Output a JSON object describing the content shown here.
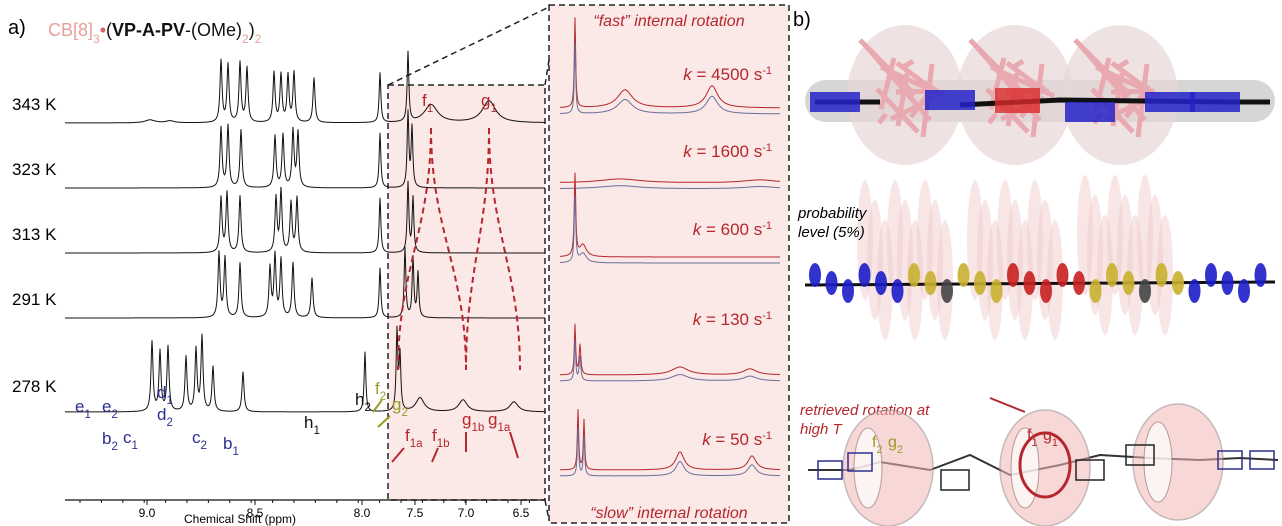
{
  "panel_a": {
    "label": "a)",
    "title": [
      {
        "text": "CB[8]"
      },
      {
        "sub": "3"
      },
      {
        "text": "•"
      },
      {
        "text": "("
      },
      {
        "bold": "VP-A-PV"
      },
      {
        "text": "-(OMe)"
      },
      {
        "sub": "2"
      },
      {
        "text": ")"
      },
      {
        "sub": "2"
      }
    ],
    "temperatures": [
      "343 K",
      "323 K",
      "313 K",
      "291 K",
      "278 K"
    ],
    "top_labels": [
      {
        "main": "f",
        "sub": "1"
      },
      {
        "main": "g",
        "sub": "1"
      }
    ],
    "peak_labels": [
      {
        "main": "e",
        "sub": "1"
      },
      {
        "main": "e",
        "sub": "2"
      },
      {
        "main": "b",
        "sub": "2"
      },
      {
        "main": "d",
        "sub": "1"
      },
      {
        "main": "d",
        "sub": "2"
      },
      {
        "main": "c",
        "sub": "1"
      },
      {
        "main": "c",
        "sub": "2"
      },
      {
        "main": "b",
        "sub": "1"
      },
      {
        "main": "h",
        "sub": "1"
      },
      {
        "main": "h",
        "sub": "2"
      },
      {
        "main": "f",
        "sub": "2"
      },
      {
        "main": "g",
        "sub": "2"
      },
      {
        "main": "f",
        "sub": "1a"
      },
      {
        "main": "f",
        "sub": "1b"
      },
      {
        "main": "g",
        "sub": "1b"
      },
      {
        "main": "g",
        "sub": "1a"
      }
    ],
    "x_axis": {
      "label": "Chemical Shift (ppm)",
      "ticks": [
        "9.0",
        "8.5",
        "8.0",
        "7.5",
        "7.0",
        "6.5"
      ]
    },
    "zoom": {
      "top": "“fast” internal rotation",
      "bottom": "“slow” internal rotation",
      "rates": [
        {
          "var": "k",
          "text": " = 4500 s",
          "sup": "-1"
        },
        {
          "var": "k",
          "text": " = 1600 s",
          "sup": "-1"
        },
        {
          "var": "k",
          "text": " = 600 s",
          "sup": "-1"
        },
        {
          "var": "k",
          "text": " = 130 s",
          "sup": "-1"
        },
        {
          "var": "k",
          "text": " = 50 s",
          "sup": "-1"
        }
      ]
    }
  },
  "panel_b": {
    "label": "b)",
    "probability": [
      "probability",
      "level (5%)"
    ],
    "rotation_note": [
      "retrieved rotation at",
      "high T"
    ],
    "labels": [
      {
        "main": "f",
        "sub": "2"
      },
      {
        "main": "g",
        "sub": "2"
      },
      {
        "main": "f",
        "sub": "1"
      },
      {
        "main": "g",
        "sub": "1"
      }
    ]
  }
}
